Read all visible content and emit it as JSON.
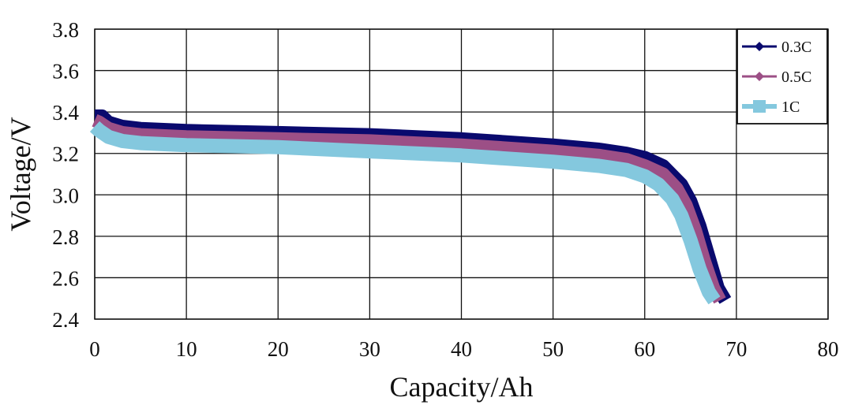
{
  "chart_data": {
    "type": "line",
    "xlabel": "Capacity/Ah",
    "ylabel": "Voltage/V",
    "xlim": [
      0,
      80
    ],
    "ylim": [
      2.4,
      3.8
    ],
    "x_ticks": [
      "0",
      "10",
      "20",
      "30",
      "40",
      "50",
      "60",
      "70",
      "80"
    ],
    "y_ticks": [
      "2.4",
      "2.6",
      "2.8",
      "3.0",
      "3.2",
      "3.4",
      "3.6",
      "3.8"
    ],
    "grid": true,
    "legend_position": "top-right",
    "series": [
      {
        "name": "0.3C",
        "color": "#0a0a6e",
        "marker": "diamond",
        "x": [
          0,
          0.8,
          1.5,
          3,
          5,
          10,
          20,
          30,
          40,
          50,
          55,
          58,
          60,
          62,
          64,
          65,
          66,
          67,
          68,
          68.8
        ],
        "y": [
          3.38,
          3.38,
          3.35,
          3.33,
          3.32,
          3.31,
          3.3,
          3.29,
          3.27,
          3.24,
          3.22,
          3.2,
          3.18,
          3.14,
          3.05,
          2.97,
          2.85,
          2.7,
          2.55,
          2.49
        ]
      },
      {
        "name": "0.5C",
        "color": "#9c4f86",
        "marker": "diamond",
        "x": [
          0,
          0.5,
          1.5,
          3,
          5,
          10,
          20,
          30,
          40,
          50,
          55,
          58,
          60,
          62,
          63.5,
          64.5,
          65.5,
          66.5,
          67.5,
          68.2
        ],
        "y": [
          3.36,
          3.35,
          3.32,
          3.3,
          3.29,
          3.28,
          3.27,
          3.26,
          3.24,
          3.21,
          3.19,
          3.17,
          3.14,
          3.1,
          3.03,
          2.95,
          2.83,
          2.68,
          2.55,
          2.49
        ]
      },
      {
        "name": "1C",
        "color": "#84c8de",
        "marker": "square",
        "x": [
          0,
          0.5,
          1.5,
          3,
          5,
          10,
          20,
          30,
          40,
          50,
          55,
          58,
          60,
          61.5,
          63,
          64,
          65,
          66,
          67,
          67.6
        ],
        "y": [
          3.33,
          3.31,
          3.28,
          3.26,
          3.25,
          3.24,
          3.23,
          3.21,
          3.19,
          3.16,
          3.14,
          3.12,
          3.09,
          3.05,
          2.98,
          2.9,
          2.78,
          2.64,
          2.53,
          2.49
        ]
      }
    ]
  }
}
